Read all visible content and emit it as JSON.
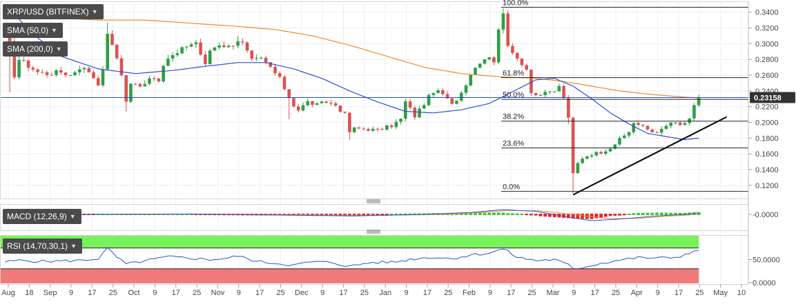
{
  "colors": {
    "up": "#2e9e46",
    "down": "#d9534f",
    "sma50": "#2b4ed8",
    "sma200": "#f08a2c",
    "trendline": "#111111",
    "fib": "#222222",
    "macd_line": "#2b4ed8",
    "signal_line": "#f08a2c",
    "hist_up": "#33cc33",
    "hist_down": "#ee2222",
    "rsi_line": "#2b4ed8",
    "rsi_overbought": "#77f25a",
    "rsi_oversold": "#f27a7a",
    "price_tag_bg": "#333333",
    "price_line": "#1f4fbf"
  },
  "legends": {
    "main": "XRP/USD (BITFINEX)",
    "sma50": "SMA (50,0)",
    "sma200": "SMA (200,0)",
    "macd": "MACD (12,26,9)",
    "rsi": "RSI (14,70,30,1)"
  },
  "icons": {
    "legend_caret": "caret-down-icon",
    "pane_handle": "drag-handle-icon"
  },
  "price_tag": "0.23158",
  "chart_data": [
    {
      "type": "candlestick",
      "title": "XRP/USD (BITFINEX)",
      "xlabel": "",
      "ylabel": "",
      "ylim": [
        0.105,
        0.352
      ],
      "y_ticks": [
        0.12,
        0.14,
        0.16,
        0.18,
        0.2,
        0.22,
        0.24,
        0.26,
        0.28,
        0.3,
        0.32,
        0.34
      ],
      "y_tick_labels": [
        "0.1200",
        "0.1400",
        "0.1600",
        "0.1800",
        "0.2000",
        "0.2200",
        "0.2400",
        "0.2600",
        "0.2800",
        "0.3000",
        "0.3200",
        "0.3400"
      ],
      "grid": true,
      "x_ticks": [
        "Aug",
        "18",
        "Sep",
        "9",
        "17",
        "25",
        "Oct",
        "9",
        "17",
        "25",
        "Nov",
        "9",
        "17",
        "25",
        "Dec",
        "9",
        "17",
        "25",
        "Jan",
        "9",
        "17",
        "25",
        "Feb",
        "9",
        "17",
        "25",
        "Mar",
        "9",
        "17",
        "25",
        "Apr",
        "9",
        "17",
        "25",
        "May",
        "10"
      ],
      "close_anchors": [
        [
          0,
          0.312
        ],
        [
          1,
          0.3
        ],
        [
          2,
          0.26
        ],
        [
          3,
          0.28
        ],
        [
          5,
          0.272
        ],
        [
          7,
          0.264
        ],
        [
          9,
          0.262
        ],
        [
          12,
          0.264
        ],
        [
          14,
          0.26
        ],
        [
          16,
          0.27
        ],
        [
          18,
          0.265
        ],
        [
          20,
          0.25
        ],
        [
          21,
          0.265
        ],
        [
          22,
          0.315
        ],
        [
          23,
          0.296
        ],
        [
          24,
          0.282
        ],
        [
          25,
          0.262
        ],
        [
          26,
          0.226
        ],
        [
          27,
          0.25
        ],
        [
          29,
          0.245
        ],
        [
          31,
          0.258
        ],
        [
          33,
          0.255
        ],
        [
          35,
          0.282
        ],
        [
          37,
          0.287
        ],
        [
          39,
          0.298
        ],
        [
          41,
          0.302
        ],
        [
          43,
          0.272
        ],
        [
          44,
          0.292
        ],
        [
          46,
          0.3
        ],
        [
          48,
          0.296
        ],
        [
          50,
          0.305
        ],
        [
          51,
          0.3
        ],
        [
          53,
          0.278
        ],
        [
          55,
          0.28
        ],
        [
          57,
          0.27
        ],
        [
          59,
          0.255
        ],
        [
          61,
          0.232
        ],
        [
          62,
          0.222
        ],
        [
          63,
          0.216
        ],
        [
          65,
          0.226
        ],
        [
          67,
          0.222
        ],
        [
          69,
          0.226
        ],
        [
          71,
          0.222
        ],
        [
          73,
          0.21
        ],
        [
          74,
          0.188
        ],
        [
          75,
          0.192
        ],
        [
          77,
          0.192
        ],
        [
          80,
          0.19
        ],
        [
          83,
          0.196
        ],
        [
          85,
          0.204
        ],
        [
          86,
          0.226
        ],
        [
          88,
          0.208
        ],
        [
          90,
          0.224
        ],
        [
          92,
          0.24
        ],
        [
          94,
          0.236
        ],
        [
          96,
          0.222
        ],
        [
          98,
          0.238
        ],
        [
          100,
          0.262
        ],
        [
          102,
          0.278
        ],
        [
          104,
          0.285
        ],
        [
          105,
          0.278
        ],
        [
          106,
          0.316
        ],
        [
          107,
          0.342
        ],
        [
          108,
          0.3
        ],
        [
          109,
          0.285
        ],
        [
          111,
          0.276
        ],
        [
          112,
          0.268
        ],
        [
          113,
          0.24
        ],
        [
          114,
          0.235
        ],
        [
          116,
          0.236
        ],
        [
          118,
          0.24
        ],
        [
          119,
          0.245
        ],
        [
          120,
          0.232
        ],
        [
          121,
          0.204
        ],
        [
          122,
          0.135
        ],
        [
          123,
          0.148
        ],
        [
          124,
          0.155
        ],
        [
          126,
          0.16
        ],
        [
          128,
          0.162
        ],
        [
          130,
          0.168
        ],
        [
          132,
          0.178
        ],
        [
          134,
          0.188
        ],
        [
          135,
          0.2
        ],
        [
          137,
          0.194
        ],
        [
          139,
          0.188
        ],
        [
          141,
          0.19
        ],
        [
          143,
          0.2
        ],
        [
          145,
          0.196
        ],
        [
          147,
          0.203
        ],
        [
          148,
          0.22
        ],
        [
          149,
          0.232
        ]
      ],
      "range_lows": [
        [
          1,
          0.238
        ],
        [
          26,
          0.214
        ],
        [
          61,
          0.204
        ],
        [
          74,
          0.178
        ],
        [
          121,
          0.198
        ],
        [
          122,
          0.11
        ]
      ],
      "range_highs": [
        [
          22,
          0.327
        ],
        [
          50,
          0.31
        ],
        [
          107,
          0.345
        ],
        [
          113,
          0.257
        ],
        [
          149,
          0.235
        ]
      ],
      "series": [
        {
          "name": "SMA (50,0)",
          "anchors": [
            [
              0,
              0.35
            ],
            [
              6,
              0.312
            ],
            [
              12,
              0.284
            ],
            [
              20,
              0.268
            ],
            [
              28,
              0.262
            ],
            [
              36,
              0.266
            ],
            [
              44,
              0.272
            ],
            [
              50,
              0.276
            ],
            [
              56,
              0.276
            ],
            [
              62,
              0.268
            ],
            [
              68,
              0.256
            ],
            [
              74,
              0.24
            ],
            [
              80,
              0.226
            ],
            [
              86,
              0.214
            ],
            [
              92,
              0.212
            ],
            [
              98,
              0.216
            ],
            [
              104,
              0.224
            ],
            [
              110,
              0.242
            ],
            [
              114,
              0.254
            ],
            [
              118,
              0.256
            ],
            [
              122,
              0.246
            ],
            [
              126,
              0.23
            ],
            [
              130,
              0.212
            ],
            [
              134,
              0.198
            ],
            [
              138,
              0.186
            ],
            [
              142,
              0.182
            ],
            [
              146,
              0.178
            ],
            [
              149,
              0.18
            ]
          ]
        },
        {
          "name": "SMA (200,0)",
          "anchors": [
            [
              0,
              0.336
            ],
            [
              10,
              0.333
            ],
            [
              20,
              0.33
            ],
            [
              30,
              0.33
            ],
            [
              40,
              0.326
            ],
            [
              50,
              0.322
            ],
            [
              58,
              0.318
            ],
            [
              66,
              0.31
            ],
            [
              74,
              0.298
            ],
            [
              82,
              0.284
            ],
            [
              90,
              0.27
            ],
            [
              98,
              0.262
            ],
            [
              106,
              0.258
            ],
            [
              114,
              0.256
            ],
            [
              120,
              0.252
            ],
            [
              126,
              0.246
            ],
            [
              132,
              0.24
            ],
            [
              138,
              0.236
            ],
            [
              144,
              0.233
            ],
            [
              149,
              0.231
            ]
          ]
        }
      ],
      "fibonacci": [
        {
          "label": "100.0%",
          "value": 0.3463
        },
        {
          "label": "61.8%",
          "value": 0.2569
        },
        {
          "label": "50.0%",
          "value": 0.2293
        },
        {
          "label": "38.2%",
          "value": 0.2016
        },
        {
          "label": "23.6%",
          "value": 0.1675
        },
        {
          "label": "0.0%",
          "value": 0.1123
        }
      ],
      "trendline": {
        "from": [
          122,
          0.108
        ],
        "to": [
          155,
          0.207
        ]
      },
      "last_price": 0.23158
    },
    {
      "type": "macd",
      "title": "MACD (12,26,9)",
      "ylim": [
        -0.03,
        0.03
      ],
      "y_ticks": [
        0
      ],
      "y_tick_labels": [
        "-0.0000"
      ],
      "series": [
        {
          "name": "MACD",
          "anchors": [
            [
              0,
              -0.001
            ],
            [
              20,
              0.0
            ],
            [
              40,
              0.001
            ],
            [
              60,
              -0.002
            ],
            [
              75,
              -0.004
            ],
            [
              90,
              0.0
            ],
            [
              100,
              0.005
            ],
            [
              107,
              0.012
            ],
            [
              114,
              0.008
            ],
            [
              122,
              -0.009
            ],
            [
              126,
              -0.016
            ],
            [
              132,
              -0.012
            ],
            [
              140,
              -0.004
            ],
            [
              146,
              0.0
            ],
            [
              149,
              0.004
            ]
          ]
        },
        {
          "name": "Signal",
          "anchors": [
            [
              0,
              0.0
            ],
            [
              20,
              0.0
            ],
            [
              40,
              0.001
            ],
            [
              60,
              -0.001
            ],
            [
              75,
              -0.003
            ],
            [
              90,
              -0.001
            ],
            [
              100,
              0.003
            ],
            [
              108,
              0.01
            ],
            [
              115,
              0.009
            ],
            [
              124,
              -0.003
            ],
            [
              130,
              -0.011
            ],
            [
              136,
              -0.01
            ],
            [
              142,
              -0.005
            ],
            [
              149,
              0.0
            ]
          ]
        }
      ]
    },
    {
      "type": "line",
      "title": "RSI (14,70,30,1)",
      "ylim": [
        0,
        100
      ],
      "y_ticks": [
        0,
        50
      ],
      "y_tick_labels": [
        "0.0000",
        "50.0000"
      ],
      "overbought": 70,
      "oversold": 30,
      "series": [
        {
          "name": "RSI",
          "anchors": [
            [
              0,
              45
            ],
            [
              3,
              48
            ],
            [
              8,
              46
            ],
            [
              12,
              47
            ],
            [
              16,
              48
            ],
            [
              20,
              52
            ],
            [
              22,
              74
            ],
            [
              24,
              55
            ],
            [
              26,
              40
            ],
            [
              30,
              47
            ],
            [
              35,
              56
            ],
            [
              40,
              53
            ],
            [
              44,
              50
            ],
            [
              48,
              53
            ],
            [
              50,
              58
            ],
            [
              54,
              46
            ],
            [
              58,
              42
            ],
            [
              62,
              38
            ],
            [
              66,
              45
            ],
            [
              70,
              44
            ],
            [
              74,
              35
            ],
            [
              78,
              43
            ],
            [
              84,
              45
            ],
            [
              88,
              52
            ],
            [
              92,
              55
            ],
            [
              96,
              52
            ],
            [
              100,
              60
            ],
            [
              104,
              64
            ],
            [
              107,
              73
            ],
            [
              110,
              55
            ],
            [
              114,
              48
            ],
            [
              118,
              50
            ],
            [
              121,
              38
            ],
            [
              122,
              30
            ],
            [
              124,
              33
            ],
            [
              128,
              42
            ],
            [
              132,
              49
            ],
            [
              136,
              54
            ],
            [
              140,
              53
            ],
            [
              144,
              55
            ],
            [
              147,
              63
            ],
            [
              149,
              70
            ]
          ]
        }
      ]
    }
  ]
}
